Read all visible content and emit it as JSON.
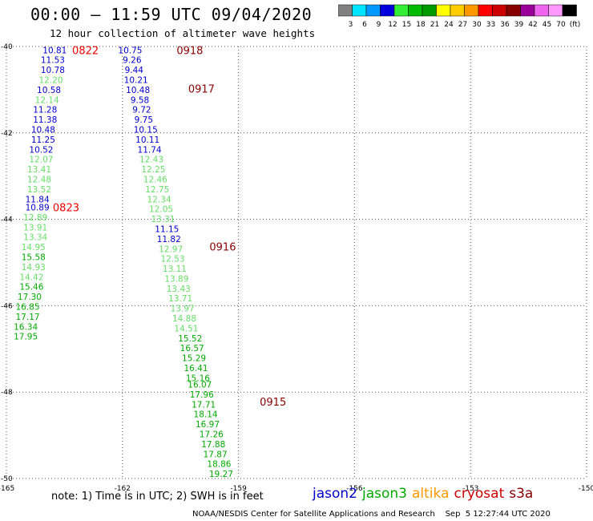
{
  "header": {
    "title": "00:00 – 11:59 UTC 09/04/2020",
    "subtitle": "12 hour collection of altimeter wave heights"
  },
  "colorbar": {
    "colors": [
      "#808080",
      "#00e5ff",
      "#0099ff",
      "#0000dd",
      "#33ee33",
      "#00bb00",
      "#009900",
      "#ffff00",
      "#ffcc00",
      "#ff9900",
      "#ff0000",
      "#cc0000",
      "#880000",
      "#990099",
      "#ee66ee",
      "#ff99ff",
      "#000000"
    ],
    "labels": [
      "3",
      "6",
      "9",
      "12",
      "15",
      "18",
      "21",
      "24",
      "27",
      "30",
      "33",
      "36",
      "39",
      "42",
      "45",
      "70",
      "(ft)"
    ]
  },
  "footer": {
    "note": "note: 1) Time is in UTC; 2) SWH is in feet",
    "credit": "NOAA/NESDIS Center for Satellite Applications and Research    Sep  5 12:27:44 UTC 2020"
  },
  "legend": [
    {
      "name": "jason2",
      "color": "#0000cc"
    },
    {
      "name": "jason3",
      "color": "#00aa00"
    },
    {
      "name": "altika",
      "color": "#ff9900"
    },
    {
      "name": "cryosat",
      "color": "#cc0000"
    },
    {
      "name": "s3a",
      "color": "#880000"
    }
  ],
  "chart_data": {
    "type": "scatter",
    "title": "00:00 – 11:59 UTC 09/04/2020",
    "subtitle": "12 hour collection of altimeter wave heights",
    "xlim": [
      -165,
      -150
    ],
    "ylim": [
      -50,
      -40
    ],
    "xticks": [
      -165,
      -162,
      -159,
      -156,
      -153,
      -150
    ],
    "yticks": [
      -40,
      -42,
      -44,
      -46,
      -48,
      -50
    ],
    "grid": true,
    "units": "ft",
    "track_labels": [
      {
        "text": "0822",
        "x": -163.3,
        "y": -40.08,
        "color": "#ee0000"
      },
      {
        "text": "0918",
        "x": -160.6,
        "y": -40.08,
        "color": "#880000"
      },
      {
        "text": "0917",
        "x": -160.3,
        "y": -40.97,
        "color": "#880000"
      },
      {
        "text": "0823",
        "x": -163.8,
        "y": -43.72,
        "color": "#ee0000"
      },
      {
        "text": "0916",
        "x": -159.75,
        "y": -44.63,
        "color": "#880000"
      },
      {
        "text": "0915",
        "x": -158.45,
        "y": -48.22,
        "color": "#880000"
      }
    ],
    "series": [
      {
        "name": "0822/0823",
        "points": [
          {
            "x": -163.75,
            "y": -40.08,
            "v": "10.81",
            "c": "#0000cc"
          },
          {
            "x": -163.8,
            "y": -40.31,
            "v": "11.53",
            "c": "#0000cc"
          },
          {
            "x": -163.8,
            "y": -40.54,
            "v": "10.78",
            "c": "#0000cc"
          },
          {
            "x": -163.85,
            "y": -40.77,
            "v": "12.20",
            "c": "#66dd66"
          },
          {
            "x": -163.9,
            "y": -41.0,
            "v": "10.58",
            "c": "#0000cc"
          },
          {
            "x": -163.95,
            "y": -41.23,
            "v": "12.14",
            "c": "#66dd66"
          },
          {
            "x": -164.0,
            "y": -41.46,
            "v": "11.28",
            "c": "#0000cc"
          },
          {
            "x": -164.0,
            "y": -41.69,
            "v": "11.38",
            "c": "#0000cc"
          },
          {
            "x": -164.05,
            "y": -41.92,
            "v": "10.48",
            "c": "#0000cc"
          },
          {
            "x": -164.05,
            "y": -42.15,
            "v": "11.25",
            "c": "#0000cc"
          },
          {
            "x": -164.1,
            "y": -42.38,
            "v": "10.52",
            "c": "#0000cc"
          },
          {
            "x": -164.1,
            "y": -42.61,
            "v": "12.07",
            "c": "#66dd66"
          },
          {
            "x": -164.15,
            "y": -42.84,
            "v": "13.41",
            "c": "#66dd66"
          },
          {
            "x": -164.15,
            "y": -43.07,
            "v": "12.48",
            "c": "#66dd66"
          },
          {
            "x": -164.15,
            "y": -43.3,
            "v": "13.52",
            "c": "#66dd66"
          },
          {
            "x": -164.2,
            "y": -43.53,
            "v": "11.84",
            "c": "#0000cc"
          },
          {
            "x": -164.2,
            "y": -43.72,
            "v": "10.89",
            "c": "#0000cc"
          },
          {
            "x": -164.25,
            "y": -43.95,
            "v": "12.89",
            "c": "#66dd66"
          },
          {
            "x": -164.25,
            "y": -44.18,
            "v": "13.91",
            "c": "#66dd66"
          },
          {
            "x": -164.25,
            "y": -44.41,
            "v": "13.34",
            "c": "#66dd66"
          },
          {
            "x": -164.3,
            "y": -44.64,
            "v": "14.95",
            "c": "#66dd66"
          },
          {
            "x": -164.3,
            "y": -44.87,
            "v": "15.58",
            "c": "#00aa00"
          },
          {
            "x": -164.3,
            "y": -45.1,
            "v": "14.93",
            "c": "#66dd66"
          },
          {
            "x": -164.35,
            "y": -45.33,
            "v": "14.42",
            "c": "#66dd66"
          },
          {
            "x": -164.35,
            "y": -45.56,
            "v": "15.46",
            "c": "#00aa00"
          },
          {
            "x": -164.4,
            "y": -45.79,
            "v": "17.30",
            "c": "#00aa00"
          },
          {
            "x": -164.45,
            "y": -46.02,
            "v": "16.85",
            "c": "#00aa00"
          },
          {
            "x": -164.45,
            "y": -46.25,
            "v": "17.17",
            "c": "#00aa00"
          },
          {
            "x": -164.5,
            "y": -46.48,
            "v": "16.34",
            "c": "#00aa00"
          },
          {
            "x": -164.5,
            "y": -46.71,
            "v": "17.95",
            "c": "#00aa00"
          }
        ]
      },
      {
        "name": "0918/0917/0916/0915",
        "points": [
          {
            "x": -161.8,
            "y": -40.08,
            "v": "10.75",
            "c": "#0000cc"
          },
          {
            "x": -161.75,
            "y": -40.31,
            "v": "9.26",
            "c": "#0000cc"
          },
          {
            "x": -161.7,
            "y": -40.54,
            "v": "9.44",
            "c": "#0000cc"
          },
          {
            "x": -161.65,
            "y": -40.77,
            "v": "10.21",
            "c": "#0000cc"
          },
          {
            "x": -161.6,
            "y": -41.0,
            "v": "10.48",
            "c": "#0000cc"
          },
          {
            "x": -161.55,
            "y": -41.23,
            "v": "9.58",
            "c": "#0000cc"
          },
          {
            "x": -161.5,
            "y": -41.46,
            "v": "9.72",
            "c": "#0000cc"
          },
          {
            "x": -161.45,
            "y": -41.69,
            "v": "9.75",
            "c": "#0000cc"
          },
          {
            "x": -161.4,
            "y": -41.92,
            "v": "10.15",
            "c": "#0000cc"
          },
          {
            "x": -161.35,
            "y": -42.15,
            "v": "10.11",
            "c": "#0000cc"
          },
          {
            "x": -161.3,
            "y": -42.38,
            "v": "11.74",
            "c": "#0000cc"
          },
          {
            "x": -161.25,
            "y": -42.61,
            "v": "12.43",
            "c": "#66dd66"
          },
          {
            "x": -161.2,
            "y": -42.84,
            "v": "12.25",
            "c": "#66dd66"
          },
          {
            "x": -161.15,
            "y": -43.07,
            "v": "12.46",
            "c": "#66dd66"
          },
          {
            "x": -161.1,
            "y": -43.3,
            "v": "12.75",
            "c": "#66dd66"
          },
          {
            "x": -161.05,
            "y": -43.53,
            "v": "12.34",
            "c": "#66dd66"
          },
          {
            "x": -161.0,
            "y": -43.76,
            "v": "12.05",
            "c": "#66dd66"
          },
          {
            "x": -160.95,
            "y": -43.99,
            "v": "13.31",
            "c": "#66dd66"
          },
          {
            "x": -160.85,
            "y": -44.22,
            "v": "11.15",
            "c": "#0000cc"
          },
          {
            "x": -160.8,
            "y": -44.45,
            "v": "11.82",
            "c": "#0000cc"
          },
          {
            "x": -160.75,
            "y": -44.68,
            "v": "12.97",
            "c": "#66dd66"
          },
          {
            "x": -160.7,
            "y": -44.91,
            "v": "12.53",
            "c": "#66dd66"
          },
          {
            "x": -160.65,
            "y": -45.14,
            "v": "13.11",
            "c": "#66dd66"
          },
          {
            "x": -160.6,
            "y": -45.37,
            "v": "13.89",
            "c": "#66dd66"
          },
          {
            "x": -160.55,
            "y": -45.6,
            "v": "13.43",
            "c": "#66dd66"
          },
          {
            "x": -160.5,
            "y": -45.83,
            "v": "13.71",
            "c": "#66dd66"
          },
          {
            "x": -160.45,
            "y": -46.06,
            "v": "13.97",
            "c": "#66dd66"
          },
          {
            "x": -160.4,
            "y": -46.29,
            "v": "14.88",
            "c": "#66dd66"
          },
          {
            "x": -160.35,
            "y": -46.52,
            "v": "14.51",
            "c": "#66dd66"
          },
          {
            "x": -160.25,
            "y": -46.75,
            "v": "15.52",
            "c": "#00aa00"
          },
          {
            "x": -160.2,
            "y": -46.98,
            "v": "16.57",
            "c": "#00aa00"
          },
          {
            "x": -160.15,
            "y": -47.21,
            "v": "15.29",
            "c": "#00aa00"
          },
          {
            "x": -160.1,
            "y": -47.44,
            "v": "16.41",
            "c": "#00aa00"
          },
          {
            "x": -160.05,
            "y": -47.67,
            "v": "15.16",
            "c": "#00aa00"
          },
          {
            "x": -160.0,
            "y": -47.82,
            "v": "16.07",
            "c": "#00aa00"
          },
          {
            "x": -159.95,
            "y": -48.05,
            "v": "17.96",
            "c": "#00aa00"
          },
          {
            "x": -159.9,
            "y": -48.28,
            "v": "17.71",
            "c": "#00aa00"
          },
          {
            "x": -159.85,
            "y": -48.51,
            "v": "18.14",
            "c": "#00aa00"
          },
          {
            "x": -159.8,
            "y": -48.74,
            "v": "16.97",
            "c": "#00aa00"
          },
          {
            "x": -159.7,
            "y": -48.97,
            "v": "17.26",
            "c": "#00aa00"
          },
          {
            "x": -159.65,
            "y": -49.2,
            "v": "17.88",
            "c": "#00aa00"
          },
          {
            "x": -159.6,
            "y": -49.43,
            "v": "17.87",
            "c": "#00aa00"
          },
          {
            "x": -159.5,
            "y": -49.66,
            "v": "18.86",
            "c": "#00aa00"
          },
          {
            "x": -159.45,
            "y": -49.89,
            "v": "19.27",
            "c": "#00aa00"
          }
        ]
      }
    ]
  }
}
